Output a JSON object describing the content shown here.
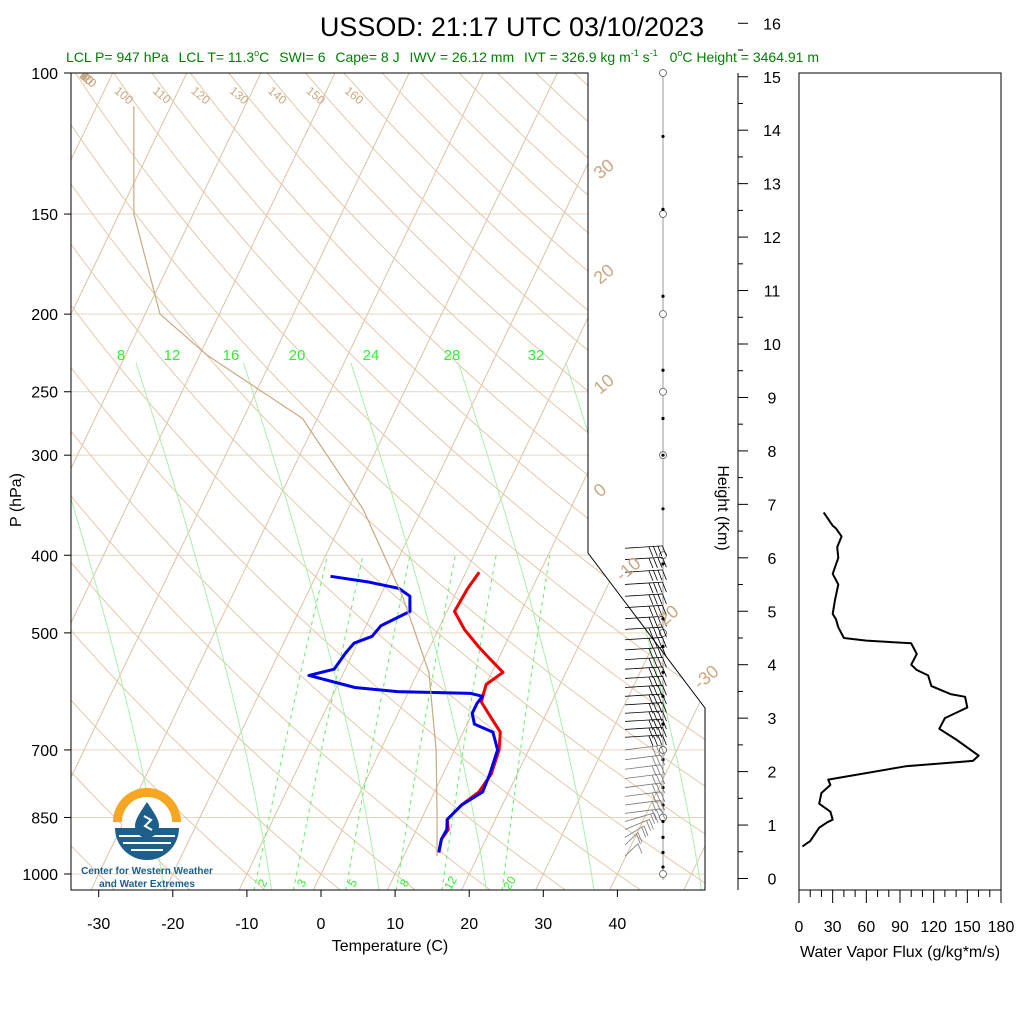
{
  "title": "USSOD: 21:17 UTC 03/10/2023",
  "subtitle": {
    "lcl_p": "LCL P= 947 hPa",
    "lcl_t_pre": "LCL T= 11.3",
    "lcl_t_post": "C",
    "swi": "SWI= 6",
    "cape": "Cape= 8 J",
    "iwv": "IWV = 26.12 mm",
    "ivt_pre": "IVT = 326.9 kg m",
    "ivt_exp1": "-1",
    "ivt_mid": " s",
    "ivt_exp2": "-1",
    "zero_pre": "0",
    "zero_post": "C Height = 3464.91 m"
  },
  "logo": {
    "line1": "Center for Western Weather",
    "line2": "and Water Extremes"
  },
  "chart_data": [
    {
      "type": "line",
      "subtype": "skew-T log-P sounding",
      "xlabel": "Temperature (C)",
      "ylabel": "P (hPa)",
      "xlim": [
        -33,
        46
      ],
      "ylim": [
        1050,
        100
      ],
      "y_scale": "log",
      "x_ticks": [
        -30,
        -20,
        -10,
        0,
        10,
        20,
        30,
        40
      ],
      "y_ticks": [
        100,
        150,
        200,
        250,
        300,
        400,
        500,
        700,
        850,
        1000
      ],
      "isotherm_labels": [
        "-30",
        "-20",
        "-10",
        "0",
        "10",
        "20",
        "30"
      ],
      "isotherm_values": [
        -30,
        -20,
        -10,
        0,
        10,
        20,
        30
      ],
      "theta_labels": [
        "-20",
        "-10",
        "0",
        "10",
        "20",
        "30",
        "40",
        "50",
        "60",
        "70",
        "80",
        "90",
        "100",
        "110",
        "120",
        "130",
        "140",
        "150",
        "160"
      ],
      "theta_values": [
        -20,
        -10,
        0,
        10,
        20,
        30,
        40,
        50,
        60,
        70,
        80,
        90,
        100,
        110,
        120,
        130,
        140,
        150,
        160
      ],
      "mixing_ratio_labels_top": [
        "8",
        "12",
        "16",
        "20",
        "24",
        "28",
        "32"
      ],
      "mixing_ratio_labels_bottom": [
        "2",
        "3",
        "5",
        "8",
        "12",
        "20"
      ],
      "series": [
        {
          "name": "Temperature",
          "color": "#ee0000",
          "points": [
            [
              14.5,
              940
            ],
            [
              14.0,
              905
            ],
            [
              14.3,
              880
            ],
            [
              13.5,
              855
            ],
            [
              14.5,
              820
            ],
            [
              16.0,
              790
            ],
            [
              16.5,
              750
            ],
            [
              16.0,
              700
            ],
            [
              15.0,
              665
            ],
            [
              13.0,
              640
            ],
            [
              10.5,
              610
            ],
            [
              10.0,
              580
            ],
            [
              11.5,
              560
            ],
            [
              9.0,
              540
            ],
            [
              6.5,
              520
            ],
            [
              3.5,
              495
            ],
            [
              1.0,
              470
            ],
            [
              1.3,
              440
            ],
            [
              1.8,
              420
            ]
          ]
        },
        {
          "name": "Dewpoint",
          "color": "#0000ee",
          "points": [
            [
              14.5,
              940
            ],
            [
              14.0,
              905
            ],
            [
              14.1,
              880
            ],
            [
              13.5,
              855
            ],
            [
              14.5,
              820
            ],
            [
              16.5,
              790
            ],
            [
              16.3,
              750
            ],
            [
              15.8,
              700
            ],
            [
              14.0,
              665
            ],
            [
              11.0,
              650
            ],
            [
              10.0,
              630
            ],
            [
              10.0,
              612
            ],
            [
              10.3,
              600
            ],
            [
              8.5,
              595
            ],
            [
              -1.5,
              592
            ],
            [
              -7.5,
              585
            ],
            [
              -14.5,
              565
            ],
            [
              -13.0,
              560
            ],
            [
              -11.5,
              555
            ],
            [
              -11.0,
              530
            ],
            [
              -10.5,
              515
            ],
            [
              -8.5,
              505
            ],
            [
              -8.0,
              490
            ],
            [
              -5.0,
              470
            ],
            [
              -5.5,
              460
            ],
            [
              -6.0,
              450
            ],
            [
              -8.0,
              440
            ],
            [
              -12.5,
              432
            ],
            [
              -18.0,
              425
            ]
          ]
        },
        {
          "name": "Parcel",
          "color": "#c8a882",
          "points": [
            [
              14.5,
              950
            ],
            [
              12.0,
              850
            ],
            [
              7.5,
              700
            ],
            [
              1.5,
              560
            ],
            [
              -7.0,
              450
            ],
            [
              -18.0,
              350
            ],
            [
              -32.0,
              270
            ],
            [
              -49.0,
              225
            ],
            [
              -58.0,
              200
            ],
            [
              -68.0,
              150
            ],
            [
              -75.0,
              110
            ]
          ]
        }
      ]
    },
    {
      "type": "line",
      "xlabel": "Water Vapor Flux (g/kg*m/s)",
      "ylabel": "Height (Km)",
      "xlim": [
        0,
        180
      ],
      "ylim": [
        0,
        16.5
      ],
      "x_ticks": [
        "0",
        "30",
        "60",
        "90",
        "120",
        "150",
        "180"
      ],
      "y_ticks": [
        "0",
        "1",
        "2",
        "3",
        "4",
        "5",
        "6",
        "7",
        "8",
        "9",
        "10",
        "11",
        "12",
        "13",
        "14",
        "15",
        "16"
      ],
      "series": [
        {
          "points": [
            [
              3,
              0.6
            ],
            [
              10,
              0.7
            ],
            [
              18,
              0.95
            ],
            [
              25,
              1.05
            ],
            [
              30,
              1.1
            ],
            [
              28,
              1.25
            ],
            [
              18,
              1.4
            ],
            [
              20,
              1.6
            ],
            [
              28,
              1.75
            ],
            [
              26,
              1.85
            ],
            [
              95,
              2.1
            ],
            [
              155,
              2.2
            ],
            [
              160,
              2.3
            ],
            [
              140,
              2.6
            ],
            [
              125,
              2.8
            ],
            [
              130,
              3.0
            ],
            [
              150,
              3.2
            ],
            [
              148,
              3.4
            ],
            [
              135,
              3.45
            ],
            [
              118,
              3.6
            ],
            [
              115,
              3.8
            ],
            [
              105,
              3.9
            ],
            [
              100,
              4.0
            ],
            [
              105,
              4.2
            ],
            [
              100,
              4.4
            ],
            [
              60,
              4.45
            ],
            [
              40,
              4.5
            ],
            [
              35,
              4.7
            ],
            [
              33,
              4.85
            ],
            [
              30,
              4.95
            ],
            [
              32,
              5.2
            ],
            [
              35,
              5.5
            ],
            [
              30,
              5.7
            ],
            [
              35,
              6.0
            ],
            [
              34,
              6.2
            ],
            [
              38,
              6.4
            ],
            [
              33,
              6.55
            ],
            [
              30,
              6.6
            ],
            [
              22,
              6.85
            ]
          ]
        }
      ]
    }
  ],
  "wind_barbs": [
    {
      "p": 392,
      "spd": 40,
      "dir": 260
    },
    {
      "p": 405,
      "spd": 40,
      "dir": 260
    },
    {
      "p": 420,
      "spd": 40,
      "dir": 260
    },
    {
      "p": 435,
      "spd": 40,
      "dir": 260
    },
    {
      "p": 450,
      "spd": 40,
      "dir": 260
    },
    {
      "p": 465,
      "spd": 40,
      "dir": 260
    },
    {
      "p": 480,
      "spd": 40,
      "dir": 260
    },
    {
      "p": 495,
      "spd": 40,
      "dir": 260
    },
    {
      "p": 510,
      "spd": 40,
      "dir": 260
    },
    {
      "p": 525,
      "spd": 40,
      "dir": 260
    },
    {
      "p": 540,
      "spd": 40,
      "dir": 260
    },
    {
      "p": 555,
      "spd": 40,
      "dir": 260
    },
    {
      "p": 570,
      "spd": 40,
      "dir": 260
    },
    {
      "p": 585,
      "spd": 40,
      "dir": 260
    },
    {
      "p": 600,
      "spd": 40,
      "dir": 260
    },
    {
      "p": 615,
      "spd": 40,
      "dir": 260
    },
    {
      "p": 630,
      "spd": 40,
      "dir": 260
    },
    {
      "p": 645,
      "spd": 40,
      "dir": 260
    },
    {
      "p": 660,
      "spd": 40,
      "dir": 260
    },
    {
      "p": 675,
      "spd": 40,
      "dir": 260
    },
    {
      "p": 700,
      "spd": 30,
      "dir": 250
    },
    {
      "p": 720,
      "spd": 30,
      "dir": 250
    },
    {
      "p": 740,
      "spd": 30,
      "dir": 250
    },
    {
      "p": 760,
      "spd": 30,
      "dir": 250
    },
    {
      "p": 780,
      "spd": 30,
      "dir": 250
    },
    {
      "p": 800,
      "spd": 30,
      "dir": 250
    },
    {
      "p": 820,
      "spd": 30,
      "dir": 250
    },
    {
      "p": 840,
      "spd": 30,
      "dir": 250
    },
    {
      "p": 860,
      "spd": 25,
      "dir": 230
    },
    {
      "p": 880,
      "spd": 25,
      "dir": 220
    },
    {
      "p": 900,
      "spd": 20,
      "dir": 210
    },
    {
      "p": 920,
      "spd": 20,
      "dir": 200
    },
    {
      "p": 950,
      "spd": 15,
      "dir": 200
    }
  ],
  "colors": {
    "temperature": "#ee0000",
    "dewpoint": "#0000ee",
    "dry_adiabat": "#c8a882",
    "mixing_ratio": "#33ee33",
    "subtitle": "#008000",
    "logo_orange": "#f5a623",
    "logo_blue": "#1d5f8a"
  }
}
